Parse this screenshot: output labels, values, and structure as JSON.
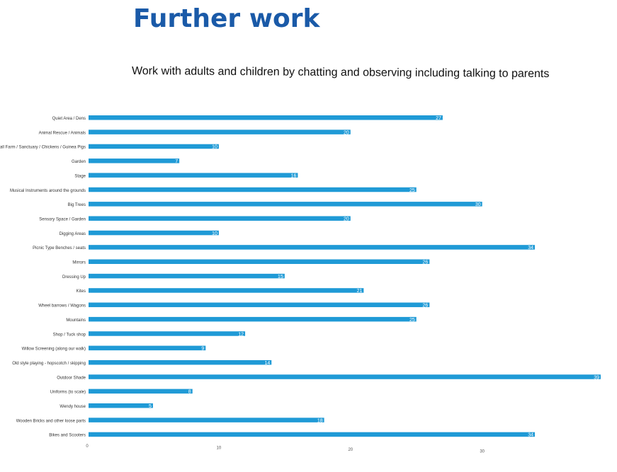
{
  "title": "Further work",
  "subtitle": "Work with adults and children by chatting and observing including talking to parents",
  "chart_data": {
    "type": "bar",
    "orientation": "horizontal",
    "bar_color": "#1f9ad6",
    "categories": [
      "Quiet Area / Dens",
      "Animal Rescue / Animals",
      "Small Farm / Sanctuary / Chickens / Guinea Pigs",
      "Garden",
      "Stage",
      "Musical Instruments around the grounds",
      "Big Trees",
      "Sensory Space / Garden",
      "Digging Areas",
      "Picnic Type Benches / seats",
      "Mirrors",
      "Dressing Up",
      "Kites",
      "Wheel barrows / Wagons",
      "Mountains",
      "Shop / Tuck shop",
      "Willow Screening (along our walk)",
      "Old style playing - hopscotch / skipping",
      "Outdoor Shade",
      "Uniforms (to scale)",
      "Wendy house",
      "Wooden Bricks and other loose parts",
      "Bikes and Scooters"
    ],
    "values": [
      27,
      20,
      10,
      7,
      16,
      25,
      30,
      20,
      10,
      34,
      26,
      15,
      21,
      26,
      25,
      12,
      9,
      14,
      39,
      8,
      5,
      18,
      34
    ],
    "xticks": [
      "0",
      "10",
      "20",
      "30"
    ],
    "xlim": [
      0,
      39
    ],
    "grid": false,
    "legend": "none"
  }
}
